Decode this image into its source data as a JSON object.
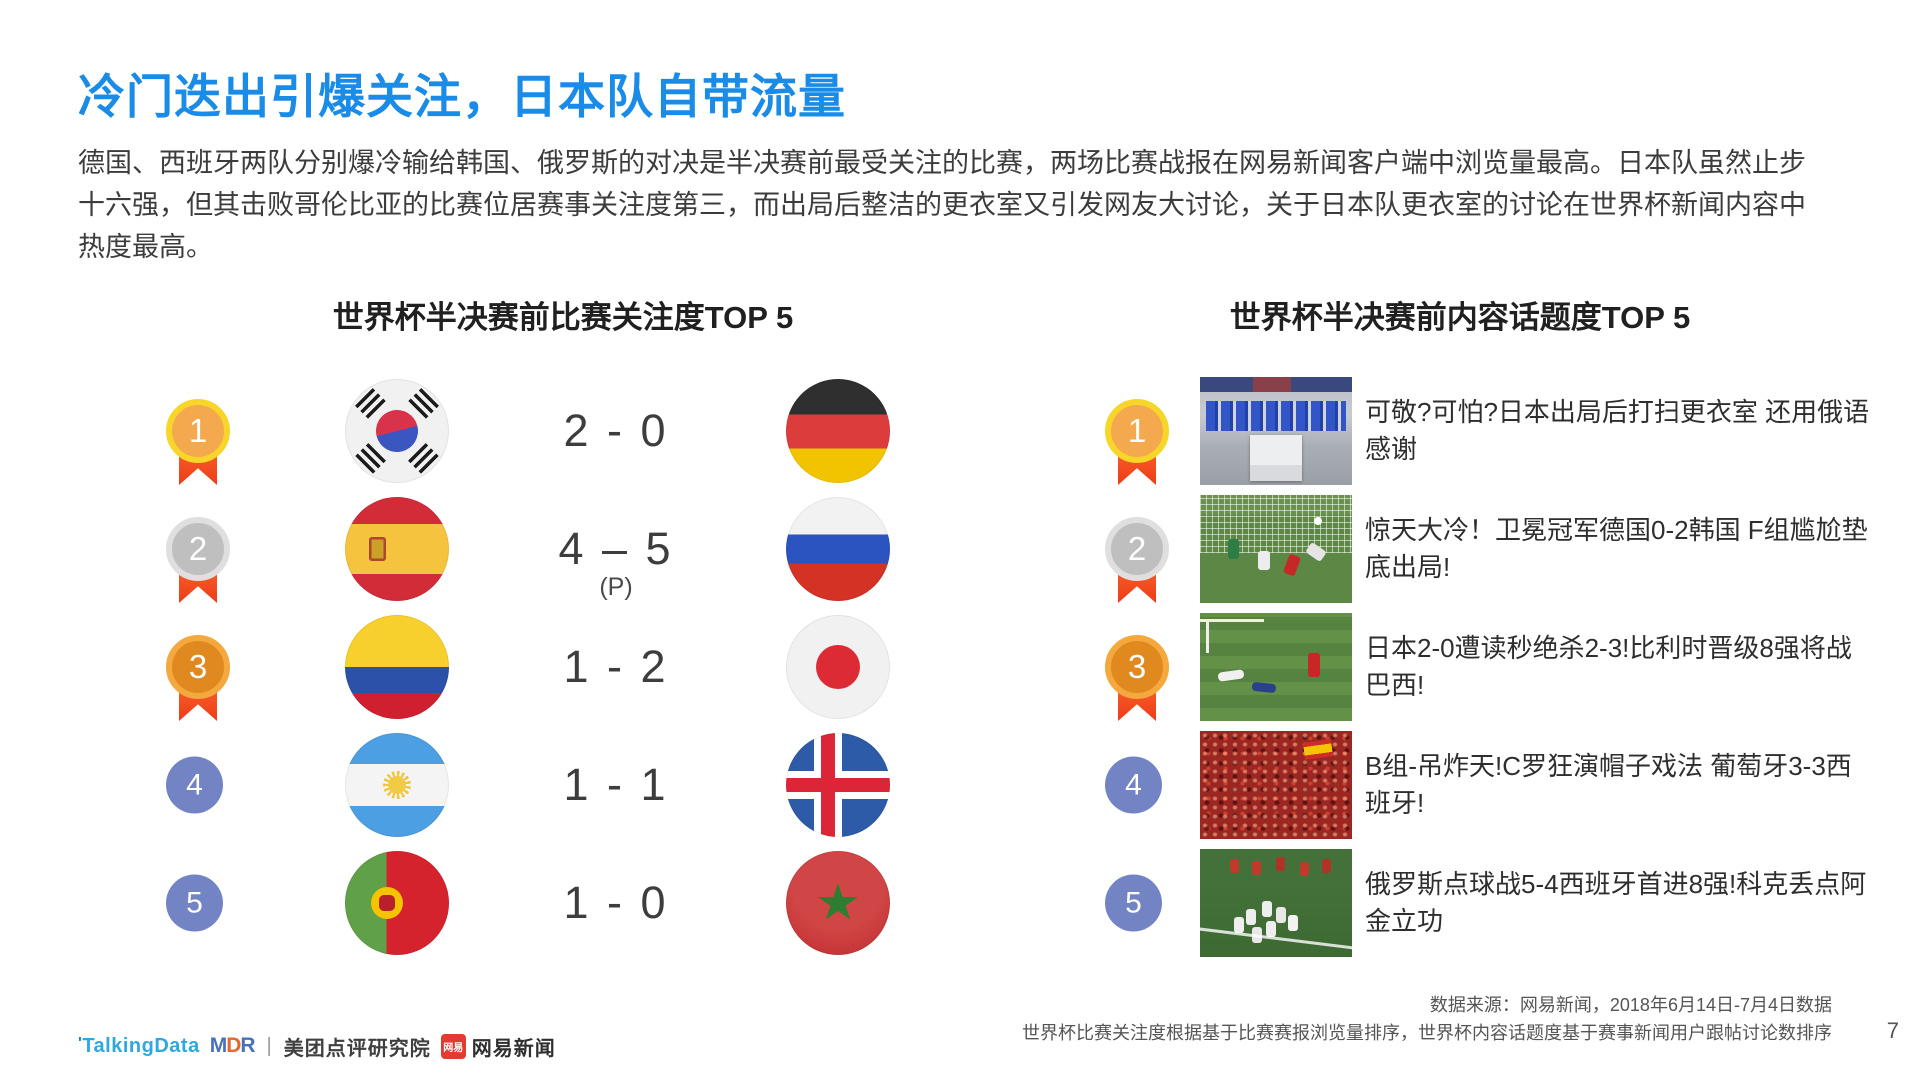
{
  "title": "冷门迭出引爆关注，日本队自带流量",
  "intro": "德国、西班牙两队分别爆冷输给韩国、俄罗斯的对决是半决赛前最受关注的比赛，两场比赛战报在网易新闻客户端中浏览量最高。日本队虽然止步十六强，但其击败哥伦比亚的比赛位居赛事关注度第三，而出局后整洁的更衣室又引发网友大讨论，关于日本队更衣室的讨论在世界杯新闻内容中热度最高。",
  "sections": {
    "matches": {
      "header": "世界杯半决赛前比赛关注度TOP 5",
      "rows": [
        {
          "rank": "1",
          "medal": "gold",
          "team1": "South Korea",
          "score": "2 - 0",
          "team2": "Germany"
        },
        {
          "rank": "2",
          "medal": "silver",
          "team1": "Spain",
          "score": "4 – 5",
          "score_note": "(P)",
          "team2": "Russia"
        },
        {
          "rank": "3",
          "medal": "bronze",
          "team1": "Colombia",
          "score": "1 - 2",
          "team2": "Japan"
        },
        {
          "rank": "4",
          "medal": "plain",
          "team1": "Argentina",
          "score": "1 - 1",
          "team2": "Iceland"
        },
        {
          "rank": "5",
          "medal": "plain",
          "team1": "Portugal",
          "score": "1 - 0",
          "team2": "Morocco"
        }
      ]
    },
    "topics": {
      "header": "世界杯半决赛前内容话题度TOP 5",
      "rows": [
        {
          "rank": "1",
          "medal": "gold",
          "thumb": "japan-locker-room-photo",
          "headline": "可敬?可怕?日本出局后打扫更衣室 还用俄语感谢"
        },
        {
          "rank": "2",
          "medal": "silver",
          "thumb": "germany-korea-goalmouth-photo",
          "headline": "惊天大冷！卫冕冠军德国0-2韩国 F组尴尬垫底出局!"
        },
        {
          "rank": "3",
          "medal": "bronze",
          "thumb": "japan-belgium-pitch-photo",
          "headline": "日本2-0遭读秒绝杀2-3!比利时晋级8强将战巴西!"
        },
        {
          "rank": "4",
          "medal": "plain",
          "thumb": "red-crowd-fans-photo",
          "headline": "B组-吊炸天!C罗狂演帽子戏法 葡萄牙3-3西班牙!"
        },
        {
          "rank": "5",
          "medal": "plain",
          "thumb": "russia-team-celebration-photo",
          "headline": "俄罗斯点球战5-4西班牙首进8强!科克丢点阿金立功"
        }
      ]
    }
  },
  "footer": {
    "source_line1": "数据来源：网易新闻，2018年6月14日-7月4日数据",
    "source_line2": "世界杯比赛关注度根据基于比赛赛报浏览量排序，世界杯内容话题度基于赛事新闻用户跟帖讨论数排序",
    "page_number": "7",
    "logos": {
      "talkingdata_mark": "'",
      "talkingdata": "TalkingData",
      "mdr_m": "M",
      "mdr_d": "D",
      "mdr_r": "R",
      "divider": "|",
      "meituan": "美团点评研究院",
      "netease_badge": "网易",
      "netease": "网易新闻"
    }
  },
  "colors": {
    "accent_blue": "#1a8ce8",
    "medal_gold": "#f8d629",
    "medal_silver": "#dfdfdf",
    "medal_bronze": "#f4a83d",
    "ribbon_red": "#ee3c17",
    "rank_badge_blue": "#7384c5"
  }
}
